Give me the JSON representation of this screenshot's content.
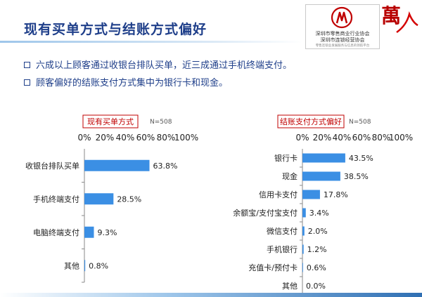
{
  "header": {
    "title": "现有买单方式与结账方式偏好",
    "org_line1": "深圳市零售商业行业协会",
    "org_line2": "深圳市连锁经营协会",
    "org_line3": "零售连锁业发展服务与信息的领航平台",
    "brand_char": "萬"
  },
  "bullets": [
    "六成以上顾客通过收银台排队买单，近三成通过手机终端支付。",
    "顾客偏好的结账支付方式集中为银行卡和现金。"
  ],
  "colors": {
    "bar": "#3b8fe4",
    "title_text": "#1f3f8a",
    "chart_title_border": "#c00000",
    "chart_title_text": "#c00000"
  },
  "chart_data": [
    {
      "type": "bar",
      "orientation": "horizontal",
      "title": "现有买单方式",
      "note": "N=508",
      "categories": [
        "收银台排队买单",
        "手机终端支付",
        "电脑终端支付",
        "其他"
      ],
      "values": [
        63.8,
        28.5,
        9.3,
        0.8
      ],
      "value_labels": [
        "63.8%",
        "28.5%",
        "9.3%",
        "0.8%"
      ],
      "xlim": [
        0,
        100
      ],
      "ticks": [
        "0%",
        "20%",
        "40%",
        "60%",
        "80%",
        "100%"
      ],
      "tick_values": [
        0,
        20,
        40,
        60,
        80,
        100
      ],
      "grid": false
    },
    {
      "type": "bar",
      "orientation": "horizontal",
      "title": "结账支付方式偏好",
      "note": "N=508",
      "categories": [
        "银行卡",
        "现金",
        "信用卡支付",
        "余额宝/支付宝支付",
        "微信支付",
        "手机银行",
        "充值卡/预付卡",
        "其他"
      ],
      "values": [
        43.5,
        38.5,
        17.8,
        3.4,
        2.0,
        1.2,
        0.6,
        0.0
      ],
      "value_labels": [
        "43.5%",
        "38.5%",
        "17.8%",
        "3.4%",
        "2.0%",
        "1.2%",
        "0.6%",
        "0.0%"
      ],
      "xlim": [
        0,
        100
      ],
      "ticks": [
        "0%",
        "20%",
        "40%",
        "60%",
        "80%",
        "100%"
      ],
      "tick_values": [
        0,
        20,
        40,
        60,
        80,
        100
      ],
      "grid": false
    }
  ]
}
